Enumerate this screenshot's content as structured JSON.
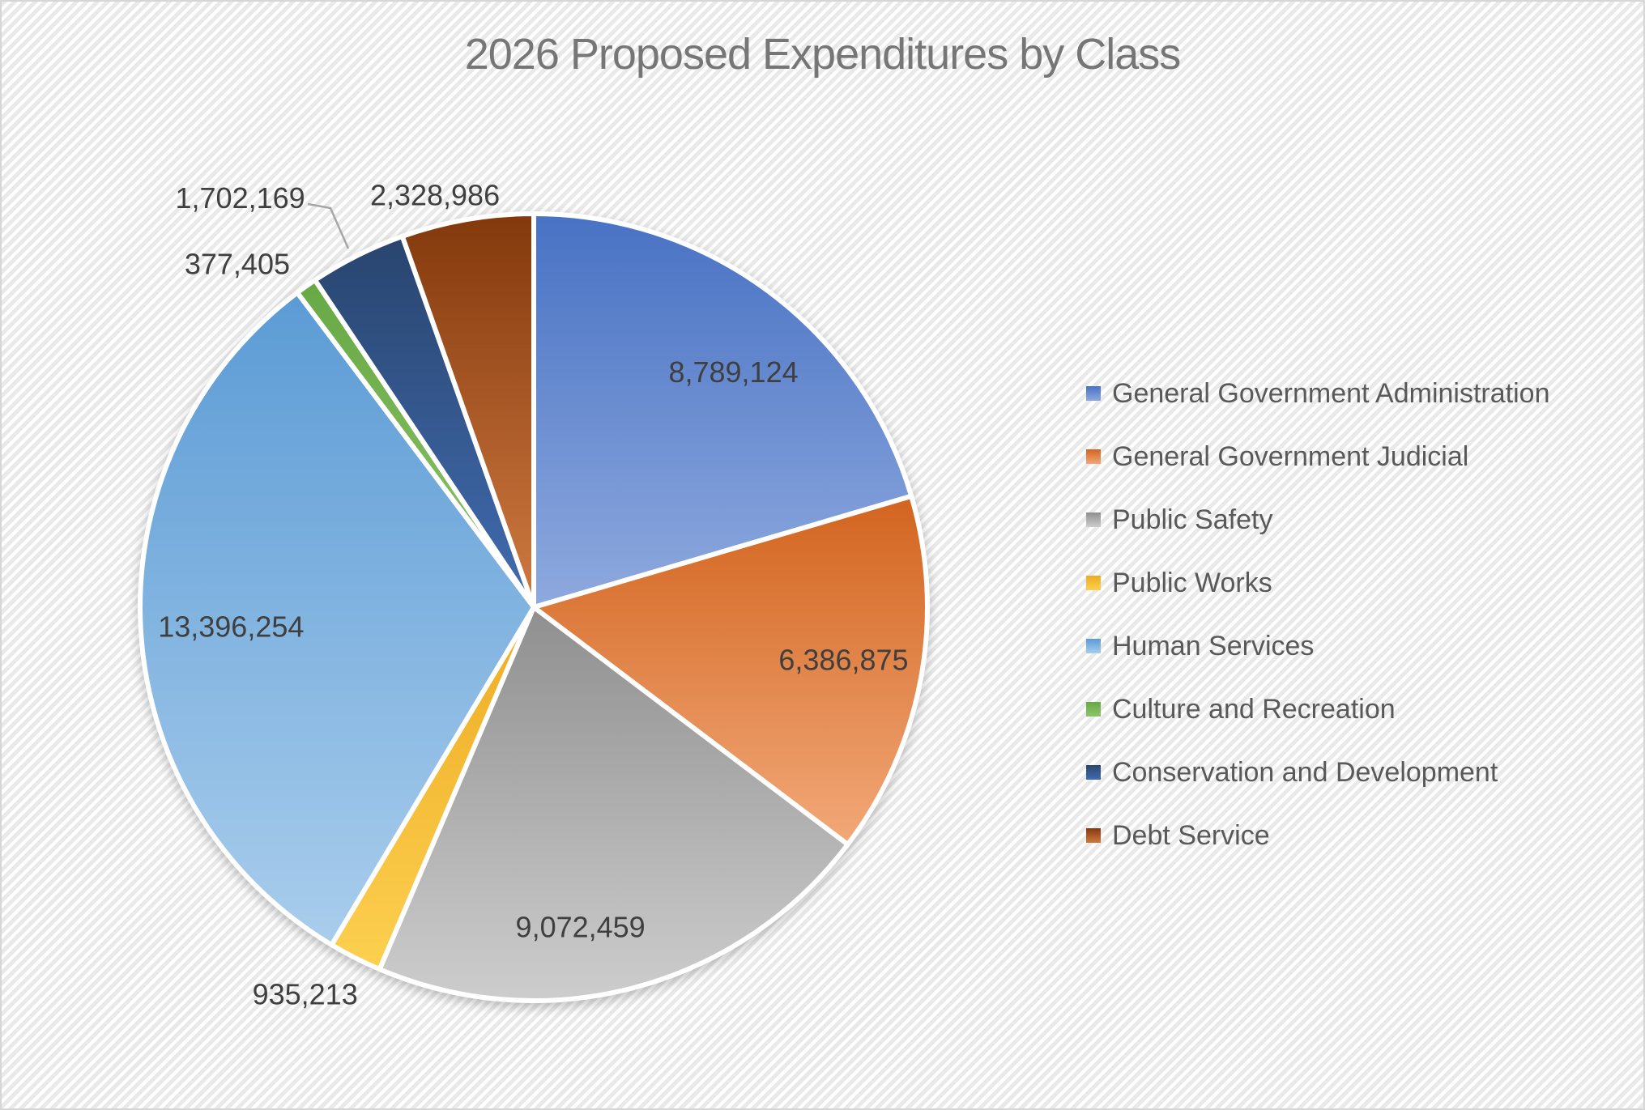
{
  "title": "2026 Proposed Expenditures by Class",
  "chart_data": {
    "type": "pie",
    "title": "2026 Proposed Expenditures by Class",
    "legend_position": "right",
    "start_angle_deg": 0,
    "direction": "clockwise",
    "total": 42988485,
    "series": [
      {
        "name": "General Government Administration",
        "value": 8789124,
        "label": "8,789,124",
        "color_top": "#4872c4",
        "color_bottom": "#8ea9de",
        "label_placement": "inside"
      },
      {
        "name": "General Government Judicial",
        "value": 6386875,
        "label": "6,386,875",
        "color_top": "#d2641f",
        "color_bottom": "#f2a878",
        "label_placement": "inside"
      },
      {
        "name": "Public Safety",
        "value": 9072459,
        "label": "9,072,459",
        "color_top": "#8f8f8f",
        "color_bottom": "#cdcdcd",
        "label_placement": "inside"
      },
      {
        "name": "Public Works",
        "value": 935213,
        "label": "935,213",
        "color_top": "#eeab24",
        "color_bottom": "#fcd04f",
        "label_placement": "outside"
      },
      {
        "name": "Human Services",
        "value": 13396254,
        "label": "13,396,254",
        "color_top": "#5b9bd5",
        "color_bottom": "#a9cdec",
        "label_placement": "inside"
      },
      {
        "name": "Culture and Recreation",
        "value": 377405,
        "label": "377,405",
        "color_top": "#68a845",
        "color_bottom": "#8cc468",
        "label_placement": "outside"
      },
      {
        "name": "Conservation and Development",
        "value": 1702169,
        "label": "1,702,169",
        "color_top": "#29456f",
        "color_bottom": "#416cb0",
        "label_placement": "outside",
        "leader_line": true
      },
      {
        "name": "Debt Service",
        "value": 2328986,
        "label": "2,328,986",
        "color_top": "#83390d",
        "color_bottom": "#d07a41",
        "label_placement": "outside"
      }
    ]
  },
  "colors": {
    "title_text": "#767676",
    "data_label_text": "#3f3f3f",
    "legend_text": "#595959",
    "slice_border": "#ffffff",
    "leader_line": "#a6a6a6"
  }
}
